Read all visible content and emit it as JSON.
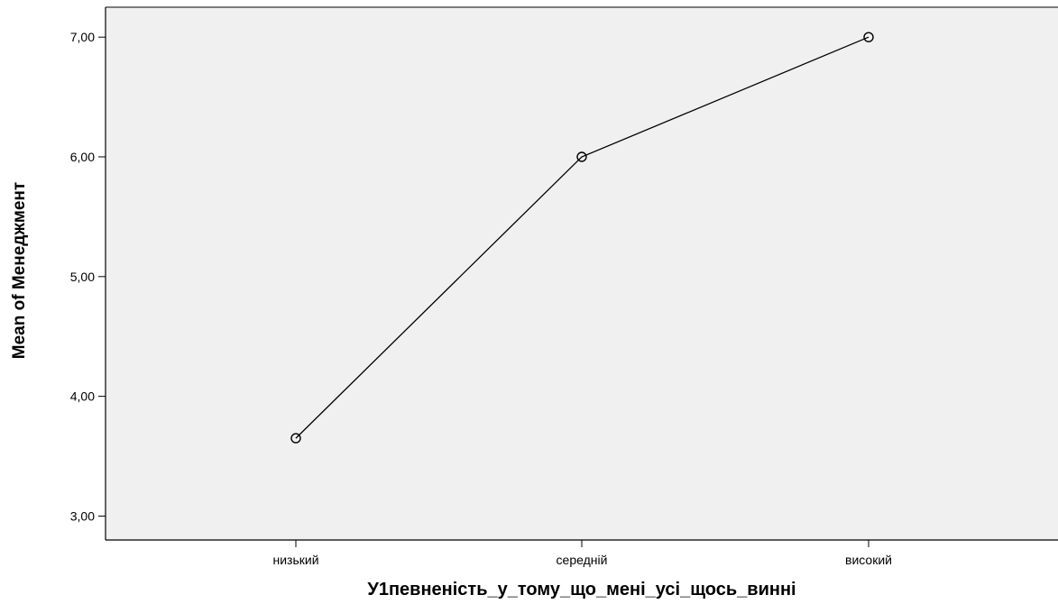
{
  "chart_data": {
    "type": "line",
    "title": "",
    "xlabel": "У1певненість_у_тому_що_мені_усі_щось_винні",
    "ylabel": "Mean of Менеджмент",
    "categories": [
      "низький",
      "середній",
      "високий"
    ],
    "series": [
      {
        "values": [
          3.65,
          6.0,
          7.0
        ]
      }
    ],
    "ylim": [
      2.8,
      7.25
    ],
    "yticks": [
      3.0,
      4.0,
      5.0,
      6.0,
      7.0
    ],
    "ytick_labels": [
      "3,00",
      "4,00",
      "5,00",
      "6,00",
      "7,00"
    ],
    "grid": false,
    "colors": {
      "plot_background": "#f0f0f0",
      "line": "#000000",
      "axis": "#000000"
    }
  }
}
